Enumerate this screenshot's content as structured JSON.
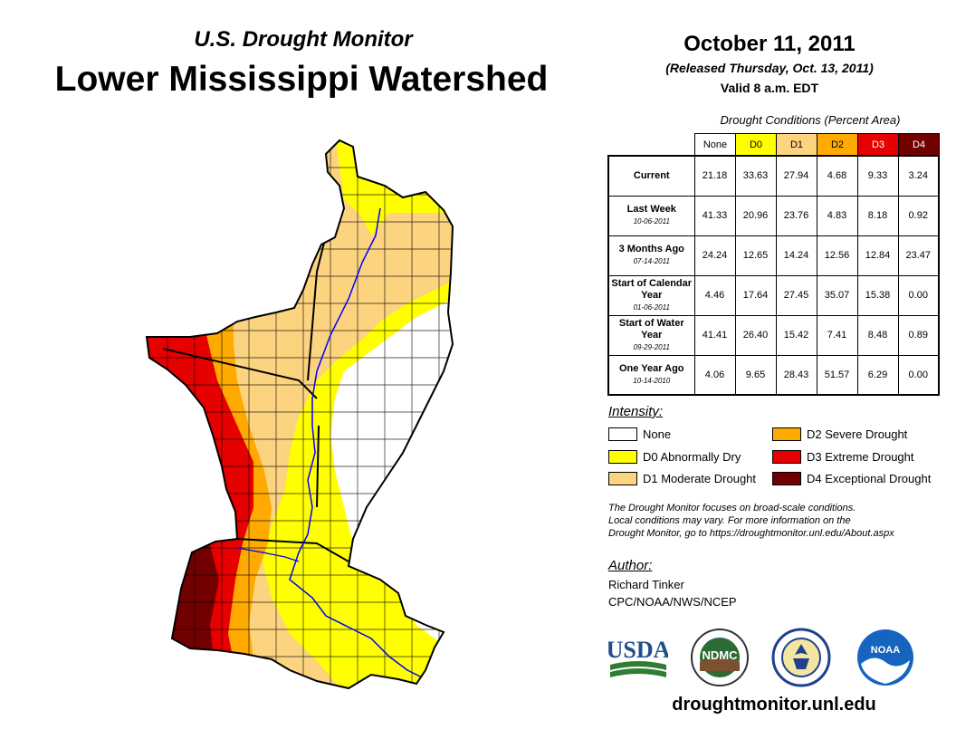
{
  "header": {
    "subtitle": "U.S. Drought Monitor",
    "title": "Lower Mississippi Watershed",
    "date": "October 11, 2011",
    "released": "(Released Thursday, Oct. 13, 2011)",
    "valid": "Valid 8 a.m. EDT"
  },
  "table": {
    "caption": "Drought Conditions (Percent Area)",
    "columns": [
      "None",
      "D0",
      "D1",
      "D2",
      "D3",
      "D4"
    ],
    "column_colors": [
      "#ffffff",
      "#ffff00",
      "#fcd37f",
      "#ffaa00",
      "#e60000",
      "#730000"
    ],
    "rows": [
      {
        "label": "Current",
        "date": "",
        "values": [
          "21.18",
          "33.63",
          "27.94",
          "4.68",
          "9.33",
          "3.24"
        ]
      },
      {
        "label": "Last Week",
        "date": "10-06-2011",
        "values": [
          "41.33",
          "20.96",
          "23.76",
          "4.83",
          "8.18",
          "0.92"
        ]
      },
      {
        "label": "3 Months Ago",
        "date": "07-14-2011",
        "values": [
          "24.24",
          "12.65",
          "14.24",
          "12.56",
          "12.84",
          "23.47"
        ]
      },
      {
        "label": "Start of Calendar Year",
        "date": "01-06-2011",
        "values": [
          "4.46",
          "17.64",
          "27.45",
          "35.07",
          "15.38",
          "0.00"
        ]
      },
      {
        "label": "Start of Water Year",
        "date": "09-29-2011",
        "values": [
          "41.41",
          "26.40",
          "15.42",
          "7.41",
          "8.48",
          "0.89"
        ]
      },
      {
        "label": "One Year Ago",
        "date": "10-14-2010",
        "values": [
          "4.06",
          "9.65",
          "28.43",
          "51.57",
          "6.29",
          "0.00"
        ]
      }
    ]
  },
  "legend": {
    "title": "Intensity:",
    "items": [
      {
        "label": "None",
        "color": "#ffffff"
      },
      {
        "label": "D0 Abnormally Dry",
        "color": "#ffff00"
      },
      {
        "label": "D1 Moderate Drought",
        "color": "#fcd37f"
      },
      {
        "label": "D2 Severe Drought",
        "color": "#ffaa00"
      },
      {
        "label": "D3 Extreme Drought",
        "color": "#e60000"
      },
      {
        "label": "D4 Exceptional Drought",
        "color": "#730000"
      }
    ]
  },
  "note": {
    "line1": "The Drought Monitor focuses on broad-scale conditions.",
    "line2": "Local conditions may vary. For more information on the",
    "line3": "Drought Monitor, go to https://droughtmonitor.unl.edu/About.aspx"
  },
  "author": {
    "title": "Author:",
    "name": "Richard Tinker",
    "org": "CPC/NOAA/NWS/NCEP"
  },
  "logos": {
    "usda": "USDA",
    "ndmc": "NDMC",
    "noaa": "NOAA"
  },
  "website": "droughtmonitor.unl.edu"
}
